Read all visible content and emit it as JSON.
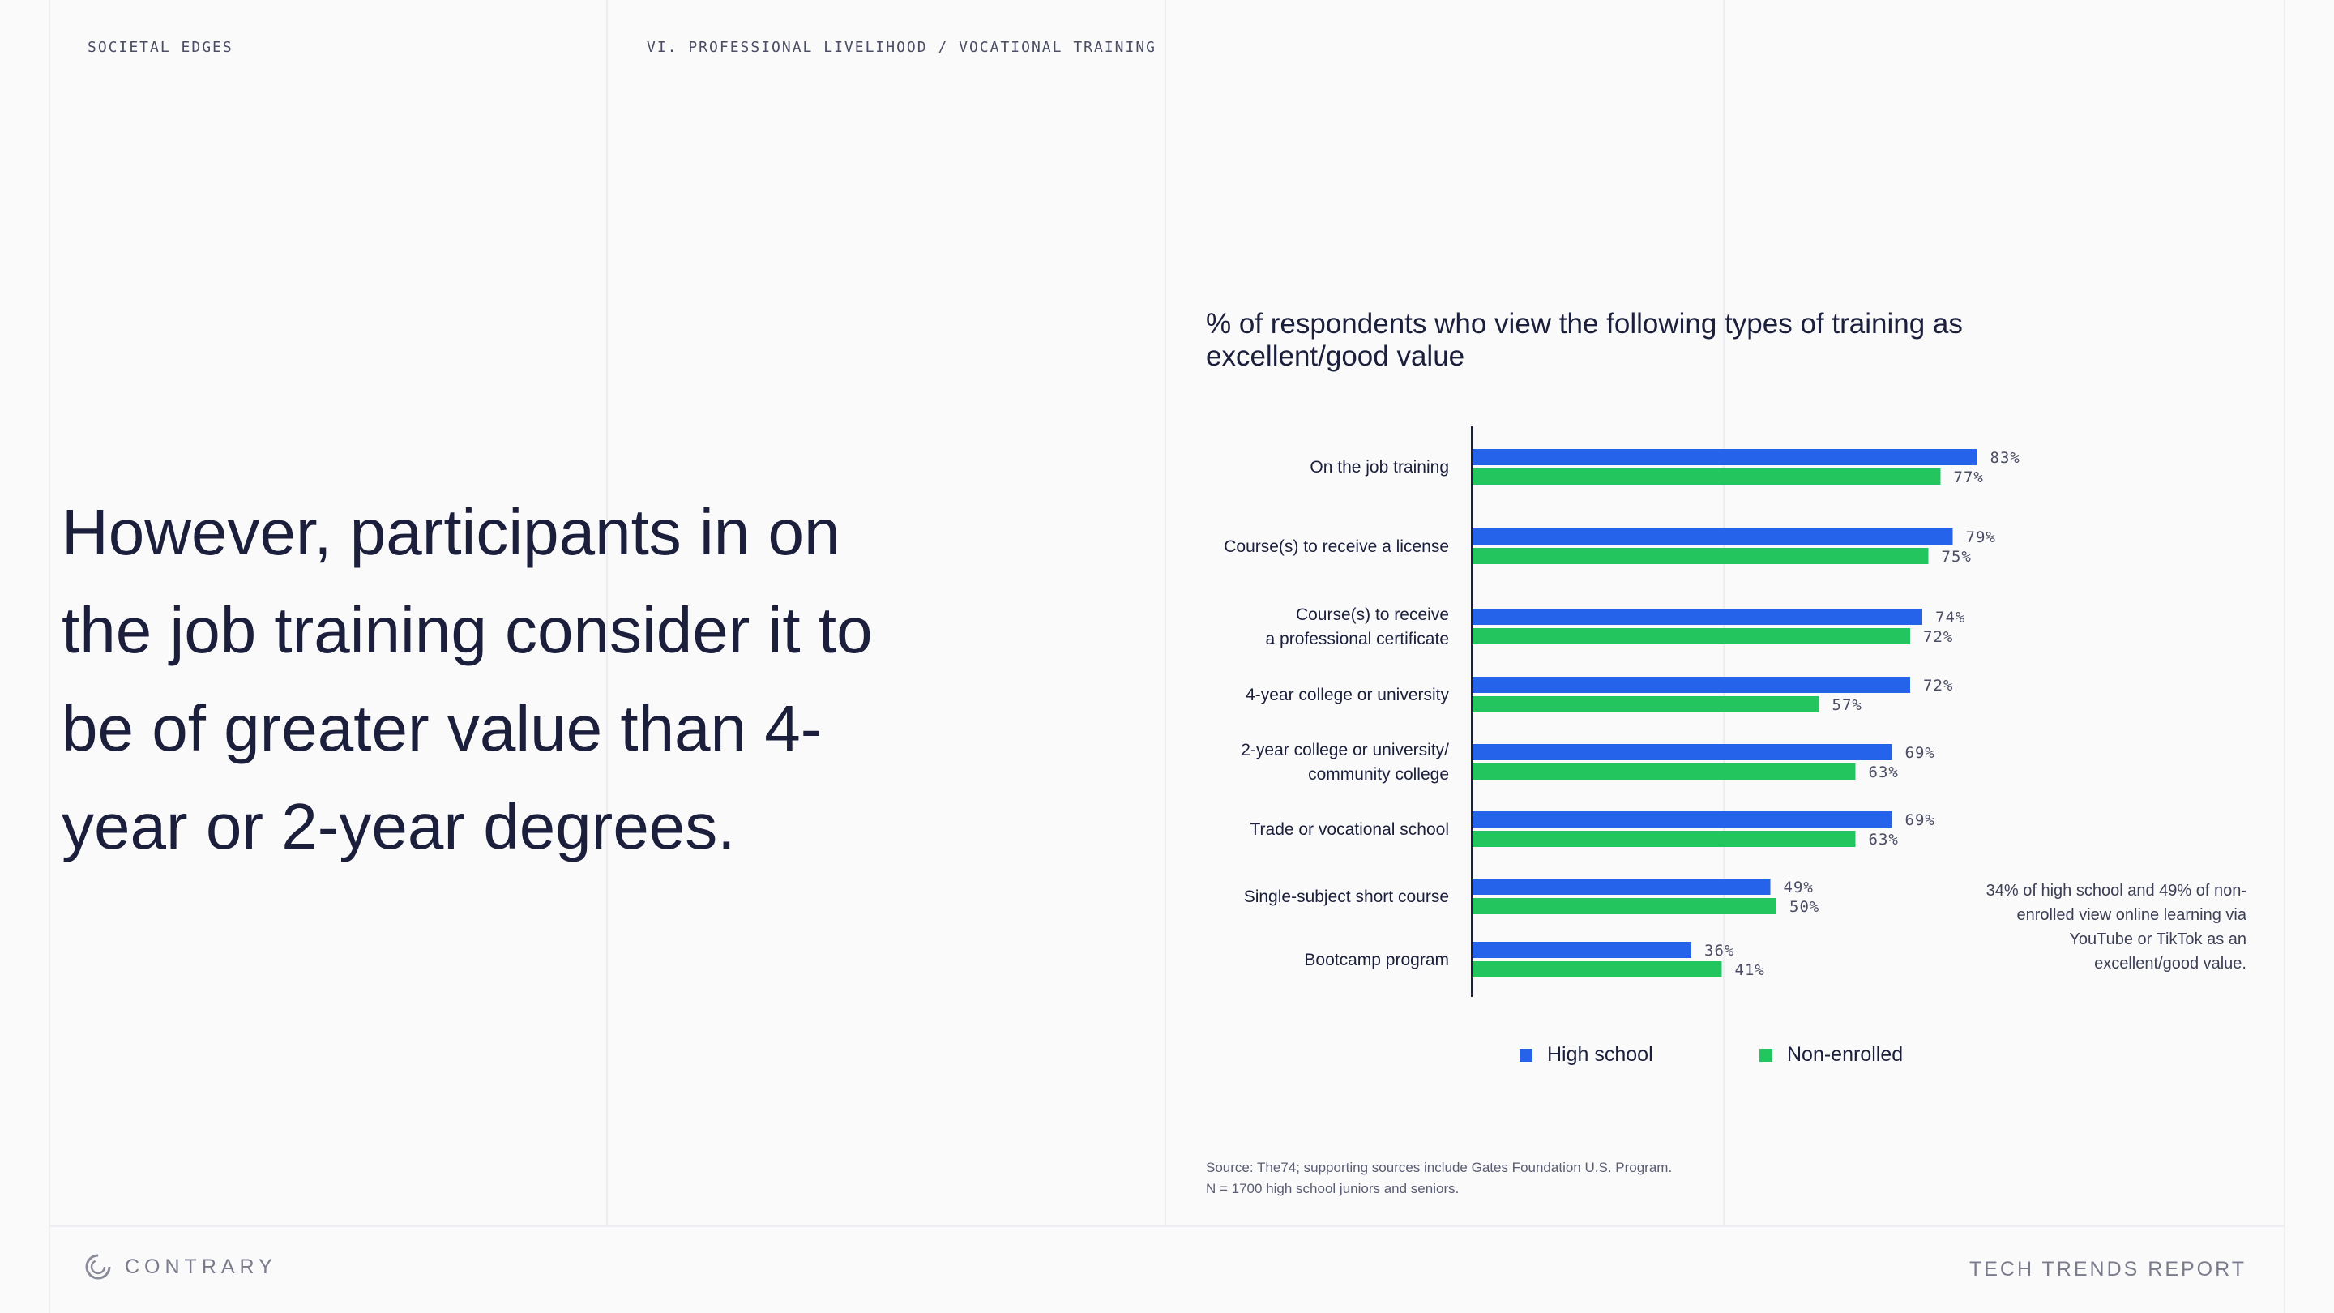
{
  "header": {
    "section": "SOCIETAL EDGES",
    "breadcrumb": "VI. PROFESSIONAL LIVELIHOOD / VOCATIONAL TRAINING"
  },
  "headline": "However, participants in on the job training consider it to be of greater value than 4-year or 2-year degrees.",
  "annotation": "34% of high school and 49% of non-enrolled view online learning via YouTube or TikTok as an excellent/good value.",
  "source": {
    "line1": "Source: The74; supporting sources include Gates Foundation U.S. Program.",
    "line2": "N = 1700 high school juniors and seniors."
  },
  "footer": {
    "logo": "CONTRARY",
    "report": "TECH TRENDS REPORT"
  },
  "colors": {
    "high_school": "#2563eb",
    "non_enrolled": "#22c55e"
  },
  "chart_data": {
    "type": "bar",
    "orientation": "horizontal",
    "title": "% of respondents who view the following types of training as excellent/good value",
    "categories": [
      [
        "On the job training"
      ],
      [
        "Course(s) to receive a license"
      ],
      [
        "Course(s) to receive",
        "a professional certificate"
      ],
      [
        "4-year college or university"
      ],
      [
        "2-year college or university/",
        "community college"
      ],
      [
        "Trade or vocational school"
      ],
      [
        "Single-subject short course"
      ],
      [
        "Bootcamp program"
      ]
    ],
    "series": [
      {
        "name": "High school",
        "color": "#2563eb",
        "values": [
          83,
          79,
          74,
          72,
          69,
          69,
          49,
          36
        ]
      },
      {
        "name": "Non-enrolled",
        "color": "#22c55e",
        "values": [
          77,
          75,
          72,
          57,
          63,
          63,
          50,
          41
        ]
      }
    ],
    "value_suffix": "%",
    "xlim": [
      0,
      100
    ],
    "grid": false,
    "legend": "bottom"
  }
}
